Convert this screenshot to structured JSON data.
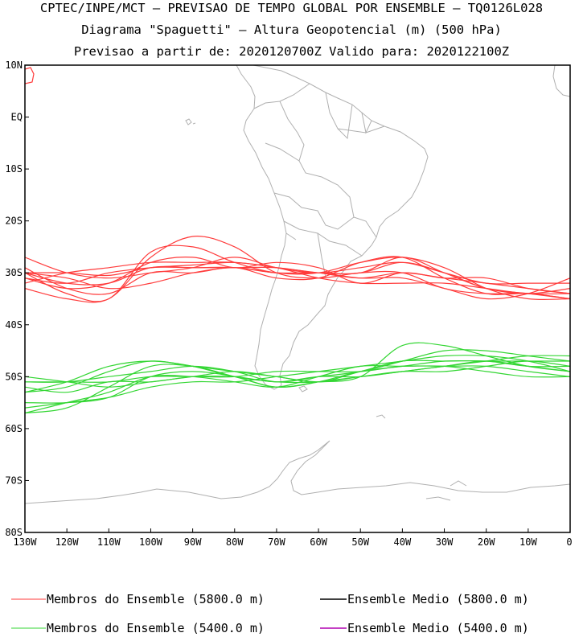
{
  "title": {
    "line1": "CPTEC/INPE/MCT – PREVISAO DE TEMPO GLOBAL POR ENSEMBLE – TQ0126L028",
    "line2": "Diagrama \"Spaguetti\" – Altura Geopotencial (m) (500 hPa)",
    "line3": "Previsao a partir de: 2020120700Z  Valido para: 2020122100Z"
  },
  "map": {
    "lon_range": [
      -130,
      0
    ],
    "lat_range": [
      -80,
      10
    ],
    "lat_ticks": [
      "10N",
      "EQ",
      "10S",
      "20S",
      "30S",
      "40S",
      "50S",
      "60S",
      "70S",
      "80S"
    ],
    "lon_ticks": [
      "130W",
      "120W",
      "110W",
      "100W",
      "90W",
      "80W",
      "70W",
      "60W",
      "50W",
      "40W",
      "30W",
      "20W",
      "10W",
      "0"
    ]
  },
  "legend": [
    {
      "label": "Membros do Ensemble (5800.0 m)",
      "color": "#ff3b3b"
    },
    {
      "label": "Ensemble Medio (5800.0 m)",
      "color": "#000000"
    },
    {
      "label": "Membros do Ensemble (5400.0 m)",
      "color": "#33d633"
    },
    {
      "label": "Ensemble Medio (5400.0 m)",
      "color": "#b000b0"
    }
  ],
  "chart_data": {
    "type": "line",
    "x_unit": "longitude (deg)",
    "y_unit": "latitude (deg)",
    "series_5800": [
      {
        "x": [
          -130,
          -120,
          -110,
          -100,
          -90,
          -80,
          -70,
          -60,
          -50,
          -40,
          -30,
          -20,
          -10,
          0
        ],
        "y": [
          -30,
          -30,
          -30.5,
          -29,
          -29,
          -29,
          -29,
          -30,
          -30,
          -28,
          -30,
          -33,
          -34,
          -33
        ]
      },
      {
        "x": [
          -130,
          -120,
          -110,
          -100,
          -90,
          -80,
          -70,
          -60,
          -50,
          -40,
          -30,
          -20,
          -10,
          0
        ],
        "y": [
          -31,
          -32,
          -30,
          -29,
          -28.5,
          -28,
          -29,
          -30,
          -31,
          -30,
          -31,
          -32,
          -33,
          -34
        ]
      },
      {
        "x": [
          -130,
          -120,
          -110,
          -100,
          -90,
          -80,
          -70,
          -60,
          -50,
          -40,
          -30,
          -20,
          -10,
          0
        ],
        "y": [
          -30,
          -34,
          -35,
          -26,
          -25,
          -28,
          -30,
          -30,
          -28,
          -27,
          -29,
          -33,
          -35,
          -35
        ]
      },
      {
        "x": [
          -130,
          -120,
          -110,
          -100,
          -90,
          -80,
          -70,
          -60,
          -50,
          -40,
          -30,
          -20,
          -10,
          0
        ],
        "y": [
          -31,
          -33,
          -32,
          -28,
          -27,
          -29,
          -28,
          -29,
          -32,
          -30,
          -31,
          -31,
          -33,
          -34
        ]
      },
      {
        "x": [
          -130,
          -120,
          -110,
          -100,
          -90,
          -80,
          -70,
          -60,
          -50,
          -40,
          -30,
          -20,
          -10,
          0
        ],
        "y": [
          -29,
          -33,
          -34,
          -30,
          -30,
          -29,
          -31,
          -31,
          -28,
          -27,
          -31,
          -34,
          -34,
          -35
        ]
      },
      {
        "x": [
          -130,
          -120,
          -110,
          -100,
          -90,
          -80,
          -70,
          -60,
          -50,
          -40,
          -30,
          -20,
          -10,
          0
        ],
        "y": [
          -33,
          -35,
          -35,
          -27,
          -23,
          -25,
          -30,
          -31,
          -30,
          -30,
          -33,
          -34,
          -34,
          -35
        ]
      },
      {
        "x": [
          -130,
          -120,
          -110,
          -100,
          -90,
          -80,
          -70,
          -60,
          -50,
          -40,
          -30,
          -20,
          -10,
          0
        ],
        "y": [
          -27,
          -30,
          -31,
          -30,
          -29,
          -27,
          -29,
          -30,
          -29,
          -28,
          -30,
          -32,
          -32,
          -32
        ]
      },
      {
        "x": [
          -130,
          -120,
          -110,
          -100,
          -90,
          -80,
          -70,
          -60,
          -50,
          -40,
          -30,
          -20,
          -10,
          0
        ],
        "y": [
          -30,
          -32,
          -32,
          -29,
          -29,
          -29,
          -30,
          -30,
          -31,
          -31,
          -33,
          -35,
          -34,
          -31
        ]
      },
      {
        "x": [
          -130,
          -120,
          -110,
          -100,
          -90,
          -80,
          -70,
          -60,
          -50,
          -40,
          -30,
          -20,
          -10,
          0
        ],
        "y": [
          -32,
          -30,
          -29,
          -28,
          -28,
          -28,
          -29,
          -31,
          -32,
          -32,
          -32,
          -33,
          -34,
          -34
        ]
      },
      {
        "x": [
          -130,
          -120,
          -110,
          -100,
          -90,
          -80,
          -70,
          -60,
          -50,
          -40,
          -30,
          -20,
          -10,
          0
        ],
        "y": [
          -30,
          -31,
          -33,
          -32,
          -30,
          -29,
          -30,
          -30,
          -30,
          -27,
          -30,
          -33,
          -34,
          -35
        ]
      }
    ],
    "series_5400": [
      {
        "x": [
          -130,
          -120,
          -110,
          -100,
          -90,
          -80,
          -70,
          -60,
          -50,
          -40,
          -30,
          -20,
          -10,
          0
        ],
        "y": [
          -53,
          -51,
          -48,
          -47,
          -48,
          -50,
          -51,
          -51,
          -50,
          -44,
          -44,
          -46,
          -48,
          -49
        ]
      },
      {
        "x": [
          -130,
          -120,
          -110,
          -100,
          -90,
          -80,
          -70,
          -60,
          -50,
          -40,
          -30,
          -20,
          -10,
          0
        ],
        "y": [
          -51,
          -51,
          -50,
          -49,
          -48,
          -49,
          -51,
          -50,
          -49,
          -47,
          -45,
          -45,
          -46,
          -47
        ]
      },
      {
        "x": [
          -130,
          -120,
          -110,
          -100,
          -90,
          -80,
          -70,
          -60,
          -50,
          -40,
          -30,
          -20,
          -10,
          0
        ],
        "y": [
          -57,
          -56,
          -52,
          -48,
          -48,
          -50,
          -52,
          -51,
          -49,
          -48,
          -47,
          -47,
          -47,
          -47
        ]
      },
      {
        "x": [
          -130,
          -120,
          -110,
          -100,
          -90,
          -80,
          -70,
          -60,
          -50,
          -40,
          -30,
          -20,
          -10,
          0
        ],
        "y": [
          -55,
          -55,
          -54,
          -50,
          -49,
          -50,
          -52,
          -51,
          -50,
          -49,
          -48,
          -47,
          -48,
          -49
        ]
      },
      {
        "x": [
          -130,
          -120,
          -110,
          -100,
          -90,
          -80,
          -70,
          -60,
          -50,
          -40,
          -30,
          -20,
          -10,
          0
        ],
        "y": [
          -52,
          -53,
          -51,
          -51,
          -50,
          -50,
          -51,
          -50,
          -50,
          -49,
          -48,
          -47,
          -46,
          -46
        ]
      },
      {
        "x": [
          -130,
          -120,
          -110,
          -100,
          -90,
          -80,
          -70,
          -60,
          -50,
          -40,
          -30,
          -20,
          -10,
          0
        ],
        "y": [
          -50,
          -51,
          -52,
          -51,
          -50,
          -49,
          -50,
          -51,
          -49,
          -47,
          -47,
          -47,
          -48,
          -48
        ]
      },
      {
        "x": [
          -130,
          -120,
          -110,
          -100,
          -90,
          -80,
          -70,
          -60,
          -50,
          -40,
          -30,
          -20,
          -10,
          0
        ],
        "y": [
          -56,
          -55,
          -54,
          -52,
          -51,
          -51,
          -50,
          -49,
          -48,
          -47,
          -46,
          -46,
          -47,
          -49
        ]
      },
      {
        "x": [
          -130,
          -120,
          -110,
          -100,
          -90,
          -80,
          -70,
          -60,
          -50,
          -40,
          -30,
          -20,
          -10,
          0
        ],
        "y": [
          -53,
          -52,
          -49,
          -47,
          -48,
          -49,
          -50,
          -51,
          -50,
          -49,
          -49,
          -48,
          -47,
          -48
        ]
      },
      {
        "x": [
          -130,
          -120,
          -110,
          -100,
          -90,
          -80,
          -70,
          -60,
          -50,
          -40,
          -30,
          -20,
          -10,
          0
        ],
        "y": [
          -57,
          -55,
          -53,
          -50,
          -50,
          -51,
          -52,
          -50,
          -48,
          -48,
          -48,
          -49,
          -50,
          -50
        ]
      },
      {
        "x": [
          -130,
          -120,
          -110,
          -100,
          -90,
          -80,
          -70,
          -60,
          -50,
          -40,
          -30,
          -20,
          -10,
          0
        ],
        "y": [
          -51,
          -51,
          -51,
          -50,
          -50,
          -50,
          -49,
          -49,
          -49,
          -48,
          -48,
          -48,
          -49,
          -50
        ]
      }
    ]
  }
}
